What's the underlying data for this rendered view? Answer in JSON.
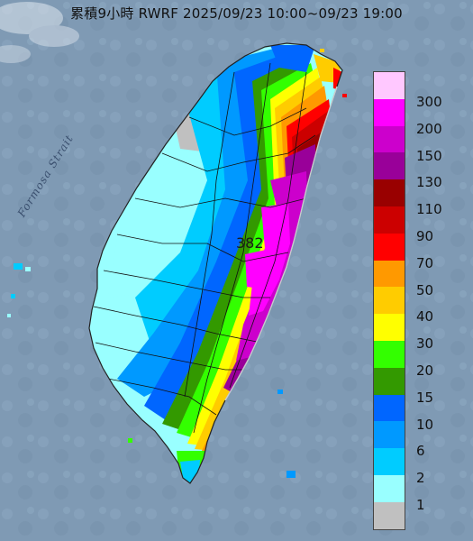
{
  "title": "累積9小時 RWRF 2025/09/23 10:00~09/23 19:00",
  "strait_label": "Formosa Strait",
  "peak_value": "382",
  "legend": [
    {
      "label": "300",
      "color": "#ffc8ff"
    },
    {
      "label": "200",
      "color": "#ff00ff"
    },
    {
      "label": "150",
      "color": "#cc00cc"
    },
    {
      "label": "130",
      "color": "#990099"
    },
    {
      "label": "110",
      "color": "#990000"
    },
    {
      "label": "90",
      "color": "#cc0000"
    },
    {
      "label": "70",
      "color": "#ff0000"
    },
    {
      "label": "50",
      "color": "#ff9900"
    },
    {
      "label": "40",
      "color": "#ffcc00"
    },
    {
      "label": "30",
      "color": "#ffff00"
    },
    {
      "label": "20",
      "color": "#33ff00"
    },
    {
      "label": "15",
      "color": "#339900"
    },
    {
      "label": "10",
      "color": "#0066ff"
    },
    {
      "label": "6",
      "color": "#0099ff"
    },
    {
      "label": "2",
      "color": "#00ccff"
    },
    {
      "label": "1",
      "color": "#99ffff"
    },
    {
      "label": "",
      "color": "#c0c0c0"
    }
  ],
  "colors": {
    "sea": "#7f9ab4",
    "land_base": "#c0c0c0"
  }
}
